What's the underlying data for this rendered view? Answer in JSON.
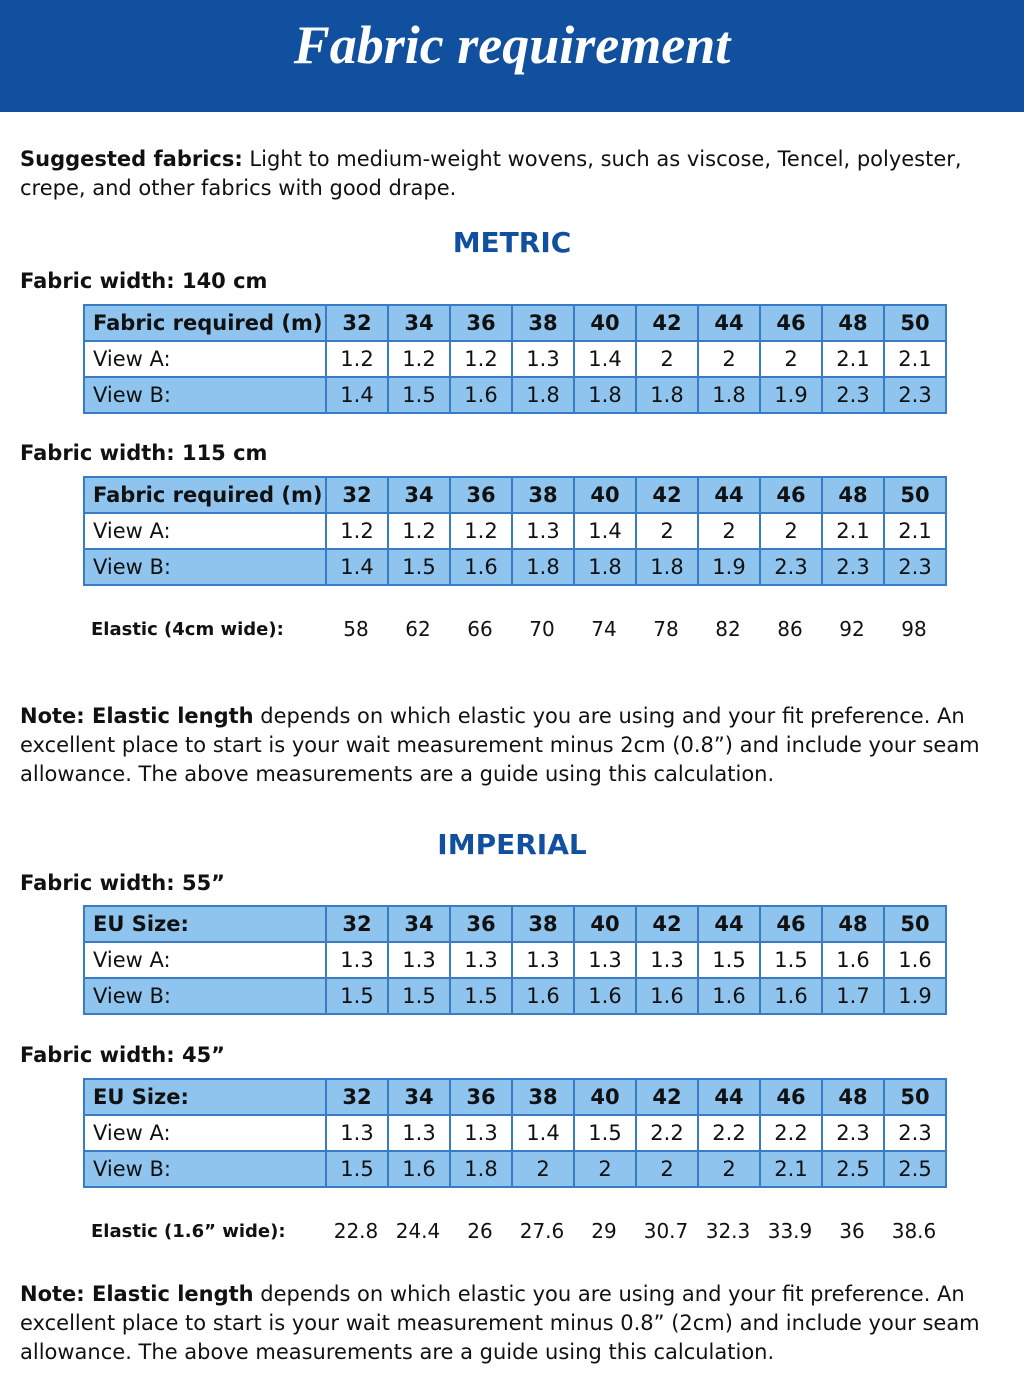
{
  "header": {
    "title": "Fabric requirement"
  },
  "intro": {
    "label": "Suggested fabrics:",
    "text": " Light to medium-weight wovens, such as viscose, Tencel, polyester, crepe, and other fabrics with good drape."
  },
  "sections": [
    {
      "heading": "METRIC",
      "tables": [
        {
          "width_label": "Fabric width: 140 cm",
          "header": [
            "Fabric required (m)",
            32,
            34,
            36,
            38,
            40,
            42,
            44,
            46,
            48,
            50
          ],
          "rows": [
            [
              "View A:",
              1.2,
              1.2,
              1.2,
              1.3,
              1.4,
              2,
              2,
              2,
              2.1,
              2.1
            ],
            [
              "View B:",
              1.4,
              1.5,
              1.6,
              1.8,
              1.8,
              1.8,
              1.8,
              1.9,
              2.3,
              2.3
            ]
          ]
        },
        {
          "width_label": "Fabric width: 115 cm",
          "header": [
            "Fabric required (m)",
            32,
            34,
            36,
            38,
            40,
            42,
            44,
            46,
            48,
            50
          ],
          "rows": [
            [
              "View A:",
              1.2,
              1.2,
              1.2,
              1.3,
              1.4,
              2,
              2,
              2,
              2.1,
              2.1
            ],
            [
              "View B:",
              1.4,
              1.5,
              1.6,
              1.8,
              1.8,
              1.8,
              1.9,
              2.3,
              2.3,
              2.3
            ]
          ]
        }
      ],
      "elastic": {
        "label": "Elastic (4cm wide):",
        "values": [
          58,
          62,
          66,
          70,
          74,
          78,
          82,
          86,
          92,
          98
        ]
      },
      "note": {
        "label": "Note: Elastic length",
        "text": " depends on which elastic you are using and your fit preference. An excellent place to start is your wait measurement minus 2cm (0.8”) and include your seam allowance. The above measurements are a guide using this calculation."
      }
    },
    {
      "heading": "IMPERIAL",
      "tables": [
        {
          "width_label": "Fabric width: 55”",
          "header": [
            "EU Size:",
            32,
            34,
            36,
            38,
            40,
            42,
            44,
            46,
            48,
            50
          ],
          "rows": [
            [
              "View A:",
              1.3,
              1.3,
              1.3,
              1.3,
              1.3,
              1.3,
              1.5,
              1.5,
              1.6,
              1.6
            ],
            [
              "View B:",
              1.5,
              1.5,
              1.5,
              1.6,
              1.6,
              1.6,
              1.6,
              1.6,
              1.7,
              1.9
            ]
          ]
        },
        {
          "width_label": "Fabric width: 45”",
          "header": [
            "EU Size:",
            32,
            34,
            36,
            38,
            40,
            42,
            44,
            46,
            48,
            50
          ],
          "rows": [
            [
              "View A:",
              1.3,
              1.3,
              1.3,
              1.4,
              1.5,
              2.2,
              2.2,
              2.2,
              2.3,
              2.3
            ],
            [
              "View B:",
              1.5,
              1.6,
              1.8,
              2,
              2,
              2,
              2,
              2.1,
              2.5,
              2.5
            ]
          ]
        }
      ],
      "elastic": {
        "label": "Elastic (1.6” wide):",
        "values": [
          22.8,
          24.4,
          26,
          27.6,
          29,
          30.7,
          32.3,
          33.9,
          36,
          38.6
        ]
      },
      "note": {
        "label": "Note: Elastic length",
        "text": " depends on which elastic you are using and your fit preference. An excellent place to start is your wait measurement minus 0.8” (2cm) and include your seam allowance. The above measurements are a guide using this calculation."
      }
    }
  ]
}
